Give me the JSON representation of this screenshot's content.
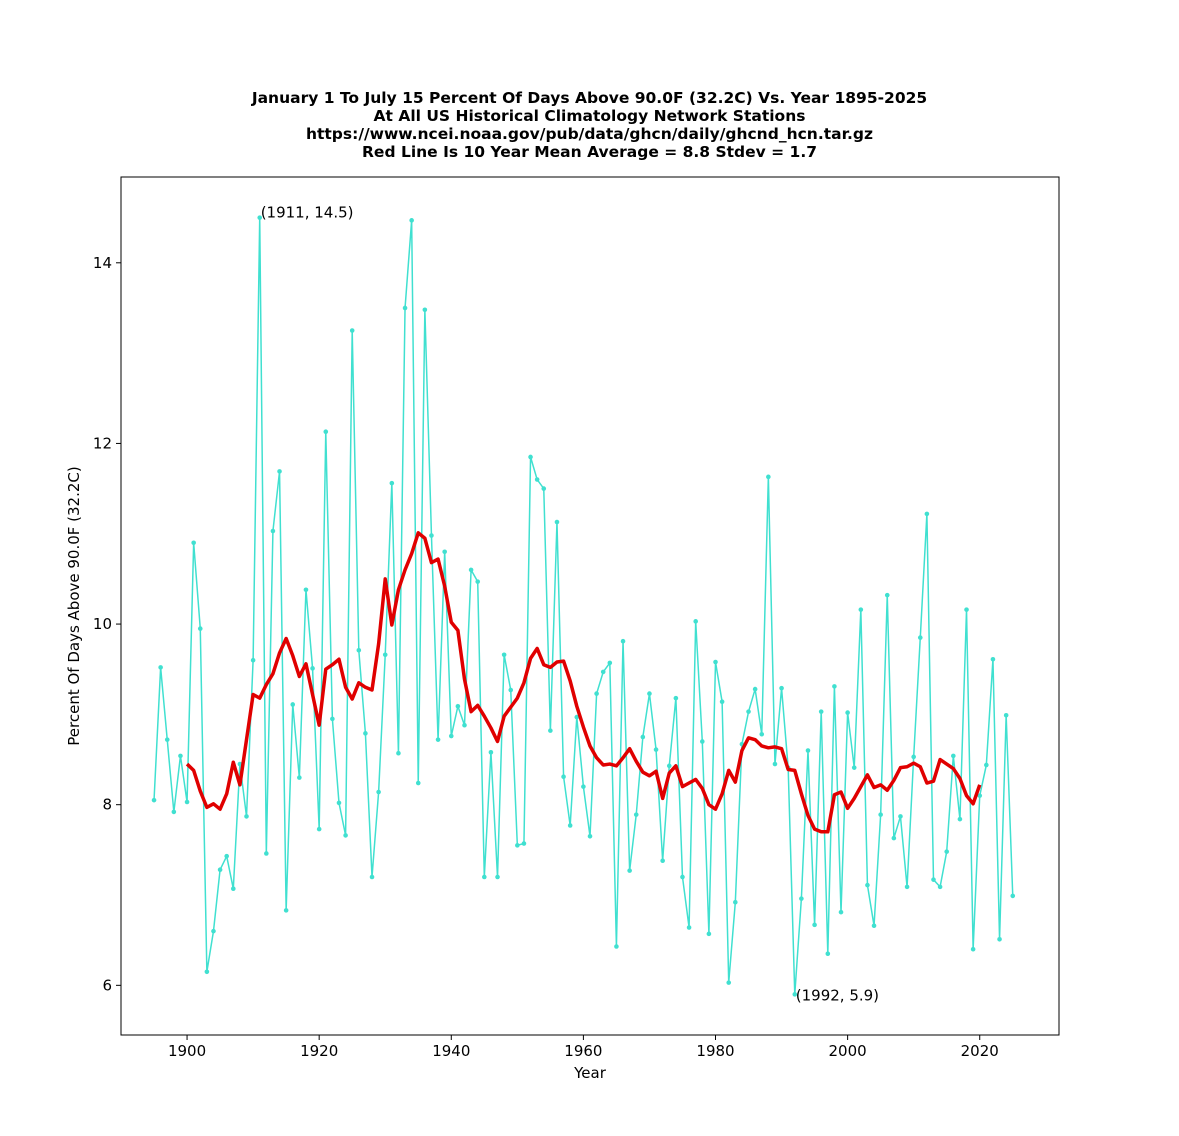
{
  "chart_data": {
    "type": "line",
    "title_lines": [
      "January 1 To July 15 Percent Of Days Above 90.0F (32.2C) Vs. Year 1895-2025",
      "At All US Historical Climatology Network Stations",
      "https://www.ncei.noaa.gov/pub/data/ghcn/daily/ghcnd_hcn.tar.gz",
      "Red Line Is 10 Year Mean  Average = 8.8 Stdev = 1.7"
    ],
    "xlabel": "Year",
    "ylabel": "Percent Of Days Above 90.0F (32.2C)",
    "xlim": [
      1890,
      2032
    ],
    "ylim": [
      5.45,
      14.95
    ],
    "xticks": [
      1900,
      1920,
      1940,
      1960,
      1980,
      2000,
      2020
    ],
    "yticks": [
      6,
      8,
      10,
      12,
      14
    ],
    "grid": false,
    "colors": {
      "annual": "#40e0d0",
      "mean": "#e00000"
    },
    "series": [
      {
        "x": [
          1895,
          1896,
          1897,
          1898,
          1899,
          1900,
          1901,
          1902,
          1903,
          1904,
          1905,
          1906,
          1907,
          1908,
          1909,
          1910,
          1911,
          1912,
          1913,
          1914,
          1915,
          1916,
          1917,
          1918,
          1919,
          1920,
          1921,
          1922,
          1923,
          1924,
          1925,
          1926,
          1927,
          1928,
          1929,
          1930,
          1931,
          1932,
          1933,
          1934,
          1935,
          1936,
          1937,
          1938,
          1939,
          1940,
          1941,
          1942,
          1943,
          1944,
          1945,
          1946,
          1947,
          1948,
          1949,
          1950,
          1951,
          1952,
          1953,
          1954,
          1955,
          1956,
          1957,
          1958,
          1959,
          1960,
          1961,
          1962,
          1963,
          1964,
          1965,
          1966,
          1967,
          1968,
          1969,
          1970,
          1971,
          1972,
          1973,
          1974,
          1975,
          1976,
          1977,
          1978,
          1979,
          1980,
          1981,
          1982,
          1983,
          1984,
          1985,
          1986,
          1987,
          1988,
          1989,
          1990,
          1991,
          1992,
          1993,
          1994,
          1995,
          1996,
          1997,
          1998,
          1999,
          2000,
          2001,
          2002,
          2003,
          2004,
          2005,
          2006,
          2007,
          2008,
          2009,
          2010,
          2011,
          2012,
          2013,
          2014,
          2015,
          2016,
          2017,
          2018,
          2019,
          2020,
          2021,
          2022,
          2023,
          2024,
          2025
        ],
        "y": [
          8.05,
          9.52,
          8.72,
          7.92,
          8.54,
          8.03,
          10.9,
          9.95,
          6.15,
          6.6,
          7.28,
          7.43,
          7.07,
          8.45,
          7.87,
          9.6,
          14.5,
          7.46,
          11.03,
          11.69,
          6.83,
          9.11,
          8.3,
          10.38,
          9.51,
          7.73,
          12.13,
          8.95,
          8.02,
          7.66,
          13.25,
          9.71,
          8.79,
          7.2,
          8.14,
          9.66,
          11.56,
          8.57,
          13.5,
          14.47,
          8.24,
          13.48,
          10.98,
          8.72,
          10.8,
          8.76,
          9.09,
          8.88,
          10.6,
          10.47,
          7.2,
          8.58,
          7.2,
          9.66,
          9.27,
          7.55,
          7.57,
          11.85,
          11.6,
          11.5,
          8.82,
          11.13,
          8.31,
          7.77,
          8.97,
          8.2,
          7.65,
          9.23,
          9.47,
          9.57,
          6.43,
          9.81,
          7.27,
          7.89,
          8.75,
          9.23,
          8.61,
          7.38,
          8.43,
          9.18,
          7.2,
          6.64,
          10.03,
          8.7,
          6.57,
          9.58,
          9.14,
          6.03,
          6.92,
          8.67,
          9.03,
          9.28,
          8.78,
          11.63,
          8.45,
          9.29,
          8.41,
          5.9,
          6.96,
          8.6,
          6.67,
          9.03,
          6.35,
          9.31,
          6.81,
          9.02,
          8.41,
          10.16,
          7.11,
          6.66,
          7.89,
          10.32,
          7.63,
          7.87,
          7.09,
          8.53,
          9.85,
          11.22,
          7.17,
          7.09,
          7.48,
          8.54,
          7.84,
          10.16,
          6.4,
          8.1,
          8.44,
          9.61,
          6.51,
          8.99,
          6.99
        ]
      },
      {
        "x": [
          1900,
          1901,
          1902,
          1903,
          1904,
          1905,
          1906,
          1907,
          1908,
          1909,
          1910,
          1911,
          1912,
          1913,
          1914,
          1915,
          1916,
          1917,
          1918,
          1919,
          1920,
          1921,
          1922,
          1923,
          1924,
          1925,
          1926,
          1927,
          1928,
          1929,
          1930,
          1931,
          1932,
          1933,
          1934,
          1935,
          1936,
          1937,
          1938,
          1939,
          1940,
          1941,
          1942,
          1943,
          1944,
          1945,
          1946,
          1947,
          1948,
          1949,
          1950,
          1951,
          1952,
          1953,
          1954,
          1955,
          1956,
          1957,
          1958,
          1959,
          1960,
          1961,
          1962,
          1963,
          1964,
          1965,
          1966,
          1967,
          1968,
          1969,
          1970,
          1971,
          1972,
          1973,
          1974,
          1975,
          1976,
          1977,
          1978,
          1979,
          1980,
          1981,
          1982,
          1983,
          1984,
          1985,
          1986,
          1987,
          1988,
          1989,
          1990,
          1991,
          1992,
          1993,
          1994,
          1995,
          1996,
          1997,
          1998,
          1999,
          2000,
          2001,
          2002,
          2003,
          2004,
          2005,
          2006,
          2007,
          2008,
          2009,
          2010,
          2011,
          2012,
          2013,
          2014,
          2015,
          2016,
          2017,
          2018,
          2019,
          2020
        ],
        "y": [
          8.45,
          8.38,
          8.15,
          7.97,
          8.01,
          7.95,
          8.12,
          8.47,
          8.22,
          8.72,
          9.22,
          9.18,
          9.33,
          9.45,
          9.68,
          9.84,
          9.65,
          9.42,
          9.56,
          9.22,
          8.88,
          9.5,
          9.55,
          9.61,
          9.3,
          9.17,
          9.35,
          9.3,
          9.27,
          9.78,
          10.5,
          9.99,
          10.38,
          10.6,
          10.78,
          11.01,
          10.95,
          10.68,
          10.72,
          10.42,
          10.02,
          9.93,
          9.39,
          9.03,
          9.1,
          8.98,
          8.85,
          8.7,
          8.98,
          9.08,
          9.18,
          9.35,
          9.62,
          9.73,
          9.55,
          9.52,
          9.58,
          9.59,
          9.37,
          9.09,
          8.86,
          8.65,
          8.52,
          8.44,
          8.45,
          8.43,
          8.52,
          8.62,
          8.48,
          8.36,
          8.32,
          8.37,
          8.07,
          8.35,
          8.43,
          8.2,
          8.24,
          8.28,
          8.18,
          8.0,
          7.95,
          8.12,
          8.38,
          8.25,
          8.6,
          8.74,
          8.72,
          8.65,
          8.63,
          8.64,
          8.62,
          8.39,
          8.38,
          8.12,
          7.88,
          7.73,
          7.7,
          7.7,
          8.11,
          8.14,
          7.96,
          8.07,
          8.2,
          8.33,
          8.19,
          8.22,
          8.16,
          8.27,
          8.41,
          8.42,
          8.46,
          8.42,
          8.24,
          8.26,
          8.5,
          8.45,
          8.4,
          8.29,
          8.1,
          8.01,
          8.22
        ]
      }
    ],
    "annotations": [
      {
        "text": "(1911, 14.5)",
        "x": 1911,
        "y": 14.5
      },
      {
        "text": "(1992, 5.9)",
        "x": 1992,
        "y": 5.9
      }
    ]
  }
}
